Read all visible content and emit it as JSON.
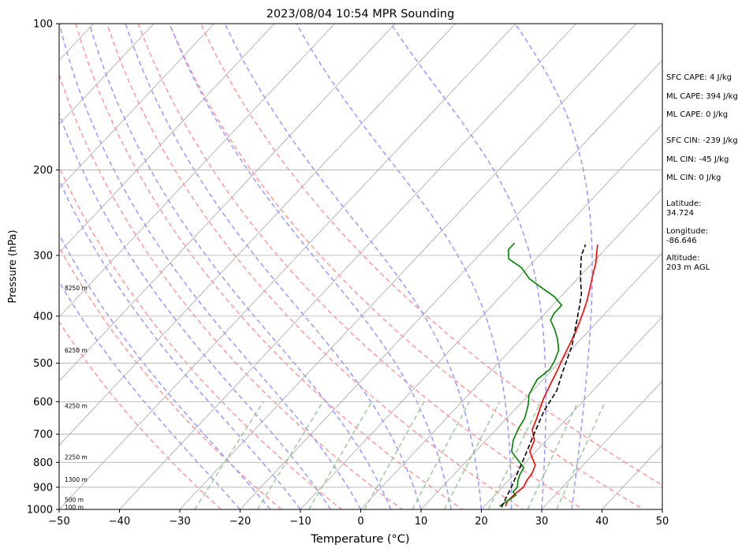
{
  "chart_data": {
    "type": "line",
    "title": "2023/08/04 10:54 MPR Sounding",
    "xlabel": "Temperature (°C)",
    "ylabel": "Pressure (hPa)",
    "xlim": [
      -50,
      50
    ],
    "ylim_hpa": [
      1000,
      100
    ],
    "y_scale": "log",
    "x_ticks": [
      -50,
      -40,
      -30,
      -20,
      -10,
      0,
      10,
      20,
      30,
      40,
      50
    ],
    "y_ticks": [
      1000,
      900,
      800,
      700,
      600,
      500,
      400,
      300,
      200,
      100
    ],
    "height_labels": [
      {
        "text": "100 m",
        "pressure": 988
      },
      {
        "text": "500 m",
        "pressure": 955
      },
      {
        "text": "1300 m",
        "pressure": 868
      },
      {
        "text": "2250 m",
        "pressure": 780
      },
      {
        "text": "4250 m",
        "pressure": 612
      },
      {
        "text": "6250 m",
        "pressure": 470
      },
      {
        "text": "8250 m",
        "pressure": 350
      }
    ],
    "series": [
      {
        "role": "temperature",
        "color": "#ff0000",
        "points": [
          [
            23.5,
            985
          ],
          [
            23,
            960
          ],
          [
            23.2,
            925
          ],
          [
            23.5,
            900
          ],
          [
            23,
            870
          ],
          [
            22.8,
            845
          ],
          [
            22.5,
            830
          ],
          [
            22,
            810
          ],
          [
            20.5,
            785
          ],
          [
            19,
            760
          ],
          [
            18,
            720
          ],
          [
            16,
            685
          ],
          [
            15,
            650
          ],
          [
            14,
            620
          ],
          [
            13,
            590
          ],
          [
            12,
            555
          ],
          [
            11,
            520
          ],
          [
            10,
            490
          ],
          [
            9,
            460
          ],
          [
            8,
            432
          ],
          [
            7,
            410
          ],
          [
            6,
            390
          ],
          [
            5,
            372
          ],
          [
            3.5,
            350
          ],
          [
            2,
            330
          ],
          [
            0.5,
            310
          ],
          [
            -1,
            295
          ],
          [
            -2,
            285
          ]
        ]
      },
      {
        "role": "dewpoint",
        "color": "#008000",
        "points": [
          [
            22.5,
            985
          ],
          [
            23,
            960
          ],
          [
            23.5,
            935
          ],
          [
            22.5,
            920
          ],
          [
            22.5,
            900
          ],
          [
            21.5,
            870
          ],
          [
            21,
            850
          ],
          [
            20.5,
            820
          ],
          [
            19,
            800
          ],
          [
            16,
            760
          ],
          [
            14.5,
            720
          ],
          [
            13.5,
            680
          ],
          [
            13,
            650
          ],
          [
            11.5,
            610
          ],
          [
            10,
            580
          ],
          [
            9.5,
            560
          ],
          [
            9,
            540
          ],
          [
            9.5,
            515
          ],
          [
            9,
            495
          ],
          [
            8,
            470
          ],
          [
            6,
            445
          ],
          [
            4,
            425
          ],
          [
            2,
            408
          ],
          [
            1.5,
            395
          ],
          [
            1.5,
            380
          ],
          [
            -1,
            365
          ],
          [
            -4,
            352
          ],
          [
            -8,
            335
          ],
          [
            -11,
            318
          ],
          [
            -14.5,
            305
          ],
          [
            -16,
            292
          ],
          [
            -16,
            283
          ]
        ]
      },
      {
        "role": "parcel",
        "color": "#000000",
        "dashed": true,
        "points": [
          [
            23,
            990
          ],
          [
            21.5,
            900
          ],
          [
            19,
            780
          ],
          [
            17,
            700
          ],
          [
            15,
            625
          ],
          [
            14,
            570
          ],
          [
            12,
            520
          ],
          [
            9.5,
            460
          ],
          [
            6.5,
            410
          ],
          [
            4.5,
            380
          ],
          [
            3,
            360
          ],
          [
            1,
            340
          ],
          [
            -1,
            320
          ],
          [
            -3,
            300
          ],
          [
            -4,
            285
          ]
        ]
      }
    ],
    "background_lines": {
      "isotherms": {
        "color": "#a6a6a6",
        "step": 10,
        "range": [
          -150,
          50
        ]
      },
      "dry_adiabats": {
        "color": "#ff9999",
        "theta_k": [
          250,
          260,
          270,
          280,
          290,
          300,
          310,
          320,
          330
        ]
      },
      "moist_adiabats": {
        "color": "#9999ff",
        "start_c": [
          -20,
          -15,
          -10,
          -5,
          0,
          5,
          10,
          15,
          20,
          25,
          30,
          35
        ]
      },
      "mixing_ratio": {
        "color": "#99cc99",
        "w_gkg": [
          0.4,
          1,
          2,
          4,
          7,
          10,
          16,
          24,
          32
        ]
      }
    }
  },
  "info_panel": {
    "sfc_cape": "SFC CAPE: 4 J/kg",
    "ml_cape_1": "ML CAPE: 394 J/kg",
    "ml_cape_2": "ML CAPE: 0 J/kg",
    "sfc_cin": "SFC CIN: -239 J/kg",
    "ml_cin_1": "ML CIN: -45 J/kg",
    "ml_cin_2": "ML CIN: 0 J/kg",
    "latitude": "Latitude:\n34.724",
    "longitude": "Longitude:\n-86.646",
    "altitude": "Altitude:\n203 m AGL"
  }
}
